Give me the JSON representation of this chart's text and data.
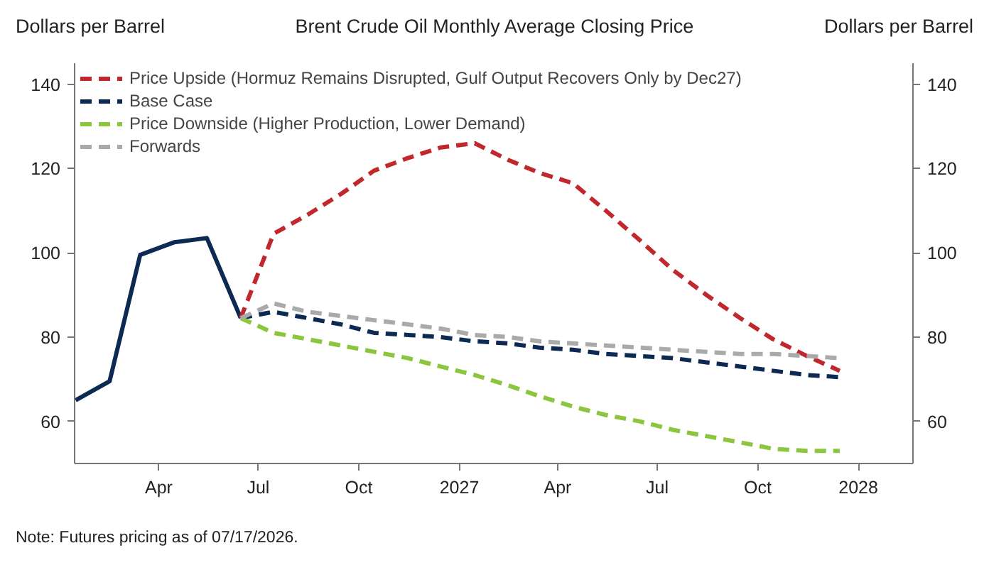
{
  "chart_data": {
    "type": "line",
    "title": "Brent Crude Oil Monthly Average Closing Price",
    "ylabel": "Dollars per Barrel",
    "y2label": "Dollars per Barrel",
    "annotations": [
      "Note: Futures pricing as of 07/17/2026."
    ],
    "x": [
      "2026-01-15",
      "2026-02-15",
      "2026-03-15",
      "2026-04-15",
      "2026-05-15",
      "2026-06-15",
      "2026-07-15",
      "2026-08-15",
      "2026-09-15",
      "2026-10-15",
      "2026-11-15",
      "2026-12-15",
      "2027-01-15",
      "2027-02-15",
      "2027-03-15",
      "2027-04-15",
      "2027-05-15",
      "2027-06-15",
      "2027-07-15",
      "2027-08-15",
      "2027-09-15",
      "2027-10-15",
      "2027-11-15",
      "2027-12-15"
    ],
    "series": [
      {
        "color": "#0d2b52",
        "line_style": "solid",
        "values": [
          65,
          69.5,
          99.5,
          102.5,
          103.5,
          84.5,
          null,
          null,
          null,
          null,
          null,
          null,
          null,
          null,
          null,
          null,
          null,
          null,
          null,
          null,
          null,
          null,
          null,
          null
        ]
      },
      {
        "name": "Price Upside (Hormuz Remains Disrupted, Gulf Output Recovers Only by Dec27)",
        "color": "#c0282d",
        "line_style": "dashed",
        "values": [
          null,
          null,
          null,
          null,
          null,
          84.5,
          104.5,
          109,
          114,
          119.5,
          122.5,
          125,
          126,
          122,
          119,
          116.5,
          110,
          103,
          96,
          90,
          84.5,
          79.5,
          75.5,
          72
        ]
      },
      {
        "name": "Base Case",
        "color": "#0d2b52",
        "line_style": "dashed",
        "values": [
          null,
          null,
          null,
          null,
          null,
          84.5,
          86,
          84.5,
          83,
          81,
          80.5,
          80,
          79,
          78.5,
          77.5,
          77,
          76,
          75.5,
          75,
          74,
          73,
          72,
          71,
          70.5
        ]
      },
      {
        "name": "Price Downside (Higher Production, Lower Demand)",
        "color": "#8cc63f",
        "line_style": "dashed",
        "values": [
          null,
          null,
          null,
          null,
          null,
          84.5,
          81,
          79.5,
          78,
          76.5,
          75,
          73,
          71,
          68.5,
          66,
          63.5,
          61.5,
          60,
          58,
          56.5,
          55,
          53.5,
          53,
          53
        ]
      },
      {
        "name": "Forwards",
        "color": "#aaaaaa",
        "line_style": "dashed",
        "values": [
          null,
          null,
          null,
          null,
          null,
          84.5,
          88,
          86,
          85,
          84,
          83,
          82,
          80.5,
          80,
          79,
          78.5,
          78,
          77.5,
          77,
          76.5,
          76,
          76,
          75.5,
          75
        ]
      }
    ],
    "xlim": [
      "2026-01-14",
      "2028-02-20"
    ],
    "xticks": [
      {
        "value": "2026-04-01",
        "label": "Apr"
      },
      {
        "value": "2026-07-01",
        "label": "Jul"
      },
      {
        "value": "2026-10-01",
        "label": "Oct"
      },
      {
        "value": "2027-01-01",
        "label": "2027"
      },
      {
        "value": "2027-04-01",
        "label": "Apr"
      },
      {
        "value": "2027-07-01",
        "label": "Jul"
      },
      {
        "value": "2027-10-01",
        "label": "Oct"
      },
      {
        "value": "2028-01-01",
        "label": "2028"
      }
    ],
    "ylim": [
      50,
      145
    ],
    "yticks": [
      60,
      80,
      100,
      120,
      140
    ],
    "y2lim": [
      50,
      145
    ],
    "y2ticks": [
      60,
      80,
      100,
      120,
      140
    ],
    "grid": false,
    "legend": "top left"
  }
}
